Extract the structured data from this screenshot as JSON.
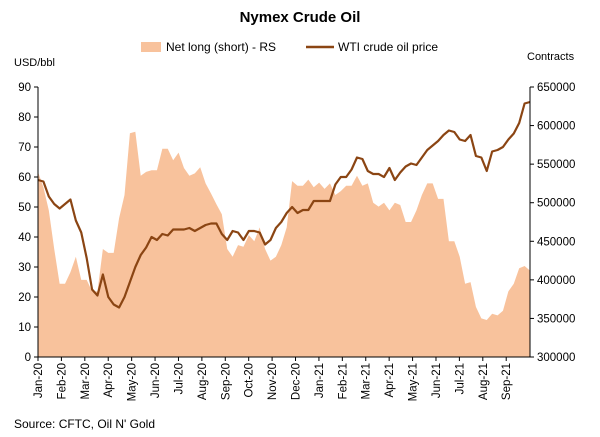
{
  "chart_data": {
    "type": "area+line",
    "title": "Nymex Crude Oil",
    "legend": [
      {
        "name": "Net long (short) - RS",
        "color": "#f8c29c",
        "kind": "area"
      },
      {
        "name": "WTI crude oil price",
        "color": "#8b4513",
        "kind": "line"
      }
    ],
    "left_axis": {
      "label": "USD/bbl",
      "min": 0,
      "max": 90,
      "step": 10,
      "ticks": [
        "0",
        "10",
        "20",
        "30",
        "40",
        "50",
        "60",
        "70",
        "80",
        "90"
      ]
    },
    "right_axis": {
      "label": "Contracts",
      "min": 300000,
      "max": 650000,
      "step": 50000,
      "ticks": [
        "300000",
        "350000",
        "400000",
        "450000",
        "500000",
        "550000",
        "600000",
        "650000"
      ]
    },
    "x_labels": [
      "Jan-20",
      "Feb-20",
      "Mar-20",
      "Apr-20",
      "May-20",
      "Jun-20",
      "Jul-20",
      "Aug-20",
      "Sep-20",
      "Oct-20",
      "Nov-20",
      "Dec-20",
      "Jan-21",
      "Feb-21",
      "Mar-21",
      "Apr-21",
      "May-21",
      "Jun-21",
      "Jul-21",
      "Aug-21",
      "Sep-21"
    ],
    "weeks_per_label": 4.33,
    "total_weeks": 92,
    "series": [
      {
        "name": "Net long (short) - RS",
        "type": "area",
        "axis": "right",
        "values": [
          540000,
          520000,
          490000,
          440000,
          395000,
          395000,
          410000,
          430000,
          400000,
          400000,
          385000,
          385000,
          440000,
          435000,
          435000,
          480000,
          510000,
          590000,
          592000,
          535000,
          540000,
          542000,
          542000,
          570000,
          570000,
          555000,
          565000,
          545000,
          535000,
          538000,
          546000,
          525000,
          512000,
          498000,
          485000,
          440000,
          430000,
          445000,
          443000,
          458000,
          450000,
          468000,
          440000,
          425000,
          430000,
          445000,
          468000,
          528000,
          522000,
          522000,
          530000,
          520000,
          526000,
          518000,
          525000,
          510000,
          515000,
          522000,
          522000,
          535000,
          522000,
          525000,
          500000,
          495000,
          500000,
          490000,
          500000,
          497000,
          475000,
          475000,
          490000,
          510000,
          525000,
          525000,
          505000,
          505000,
          450000,
          450000,
          430000,
          395000,
          397000,
          365000,
          350000,
          348000,
          356000,
          354000,
          360000,
          385000,
          395000,
          415000,
          418000,
          412000
        ]
      },
      {
        "name": "WTI crude oil price",
        "type": "line",
        "axis": "left",
        "values": [
          59,
          58.5,
          53.5,
          51,
          49.5,
          51,
          52.5,
          45.5,
          41.5,
          33,
          22.5,
          20.5,
          27.5,
          20,
          17.5,
          16.5,
          20,
          25,
          30,
          34,
          36.5,
          40,
          39,
          41,
          40.5,
          42.5,
          42.5,
          42.5,
          43,
          42,
          43,
          44,
          44.5,
          44.5,
          41,
          39,
          42,
          41.5,
          39,
          42,
          42,
          41.5,
          37.5,
          39,
          43,
          45,
          48,
          50,
          48,
          49,
          49,
          52,
          52,
          52,
          52,
          57.5,
          60,
          60,
          62.5,
          66.5,
          66,
          62,
          61,
          61,
          60,
          63,
          59,
          61.5,
          63.5,
          64.5,
          64,
          66.5,
          69,
          70.5,
          72,
          74,
          75.5,
          75,
          72.5,
          72,
          74,
          67,
          66.5,
          62,
          68.5,
          69,
          70,
          72.5,
          74.5,
          78,
          84.5,
          85
        ]
      }
    ],
    "source": "Source: CFTC, Oil N' Gold",
    "grid": false
  }
}
